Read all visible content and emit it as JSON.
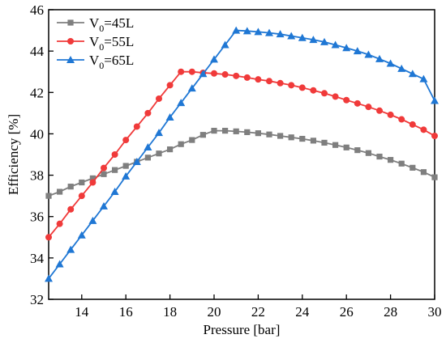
{
  "chart_data": {
    "type": "line",
    "xlabel": "Pressure [bar]",
    "ylabel": "Efficiency [%]",
    "xlim": [
      12.5,
      30
    ],
    "ylim": [
      32,
      46
    ],
    "xticks": [
      14,
      16,
      18,
      20,
      22,
      24,
      26,
      28,
      30
    ],
    "yticks": [
      32,
      34,
      36,
      38,
      40,
      42,
      44,
      46
    ],
    "grid": false,
    "legend_position": "top-left",
    "series": [
      {
        "name_main": "V",
        "name_sub": "0",
        "name_rest": "=45L",
        "color": "#7f7f7f",
        "marker": "square",
        "x": [
          12.5,
          13.0,
          13.5,
          14.0,
          14.5,
          15.0,
          15.5,
          16.0,
          16.5,
          17.0,
          17.5,
          18.0,
          18.5,
          19.0,
          19.5,
          20.0,
          20.5,
          21.0,
          21.5,
          22.0,
          22.5,
          23.0,
          23.5,
          24.0,
          24.5,
          25.0,
          25.5,
          26.0,
          26.5,
          27.0,
          27.5,
          28.0,
          28.5,
          29.0,
          29.5,
          30.0
        ],
        "values": [
          37.0,
          37.2,
          37.45,
          37.65,
          37.85,
          38.05,
          38.25,
          38.45,
          38.65,
          38.85,
          39.05,
          39.25,
          39.5,
          39.7,
          39.95,
          40.15,
          40.15,
          40.12,
          40.08,
          40.03,
          39.97,
          39.9,
          39.83,
          39.76,
          39.67,
          39.57,
          39.46,
          39.34,
          39.21,
          39.07,
          38.9,
          38.74,
          38.56,
          38.36,
          38.15,
          37.9
        ]
      },
      {
        "name_main": "V",
        "name_sub": "0",
        "name_rest": "=55L",
        "color": "#f03a3a",
        "marker": "circle",
        "x": [
          12.5,
          13.0,
          13.5,
          14.0,
          14.5,
          15.0,
          15.5,
          16.0,
          16.5,
          17.0,
          17.5,
          18.0,
          18.5,
          19.0,
          19.5,
          20.0,
          20.5,
          21.0,
          21.5,
          22.0,
          22.5,
          23.0,
          23.5,
          24.0,
          24.5,
          25.0,
          25.5,
          26.0,
          26.5,
          27.0,
          27.5,
          28.0,
          28.5,
          29.0,
          29.5,
          30.0
        ],
        "values": [
          35.0,
          35.65,
          36.35,
          37.0,
          37.65,
          38.35,
          39.0,
          39.7,
          40.35,
          41.0,
          41.7,
          42.35,
          43.0,
          43.0,
          42.95,
          42.92,
          42.87,
          42.8,
          42.72,
          42.63,
          42.55,
          42.45,
          42.35,
          42.23,
          42.1,
          41.96,
          41.8,
          41.63,
          41.47,
          41.3,
          41.12,
          40.92,
          40.7,
          40.45,
          40.2,
          39.9
        ]
      },
      {
        "name_main": "V",
        "name_sub": "0",
        "name_rest": "=65L",
        "color": "#1f77d4",
        "marker": "triangle",
        "x": [
          12.5,
          13.0,
          13.5,
          14.0,
          14.5,
          15.0,
          15.5,
          16.0,
          16.5,
          17.0,
          17.5,
          18.0,
          18.5,
          19.0,
          19.5,
          20.0,
          20.5,
          21.0,
          21.5,
          22.0,
          22.5,
          23.0,
          23.5,
          24.0,
          24.5,
          25.0,
          25.5,
          26.0,
          26.5,
          27.0,
          27.5,
          28.0,
          28.5,
          29.0,
          29.5,
          30.0
        ],
        "values": [
          33.0,
          33.7,
          34.4,
          35.1,
          35.8,
          36.5,
          37.2,
          37.95,
          38.65,
          39.35,
          40.05,
          40.8,
          41.5,
          42.2,
          42.9,
          43.6,
          44.3,
          45.0,
          44.97,
          44.93,
          44.88,
          44.82,
          44.73,
          44.64,
          44.55,
          44.44,
          44.3,
          44.15,
          44.0,
          43.83,
          43.62,
          43.4,
          43.15,
          42.9,
          42.65,
          41.6
        ]
      }
    ]
  }
}
